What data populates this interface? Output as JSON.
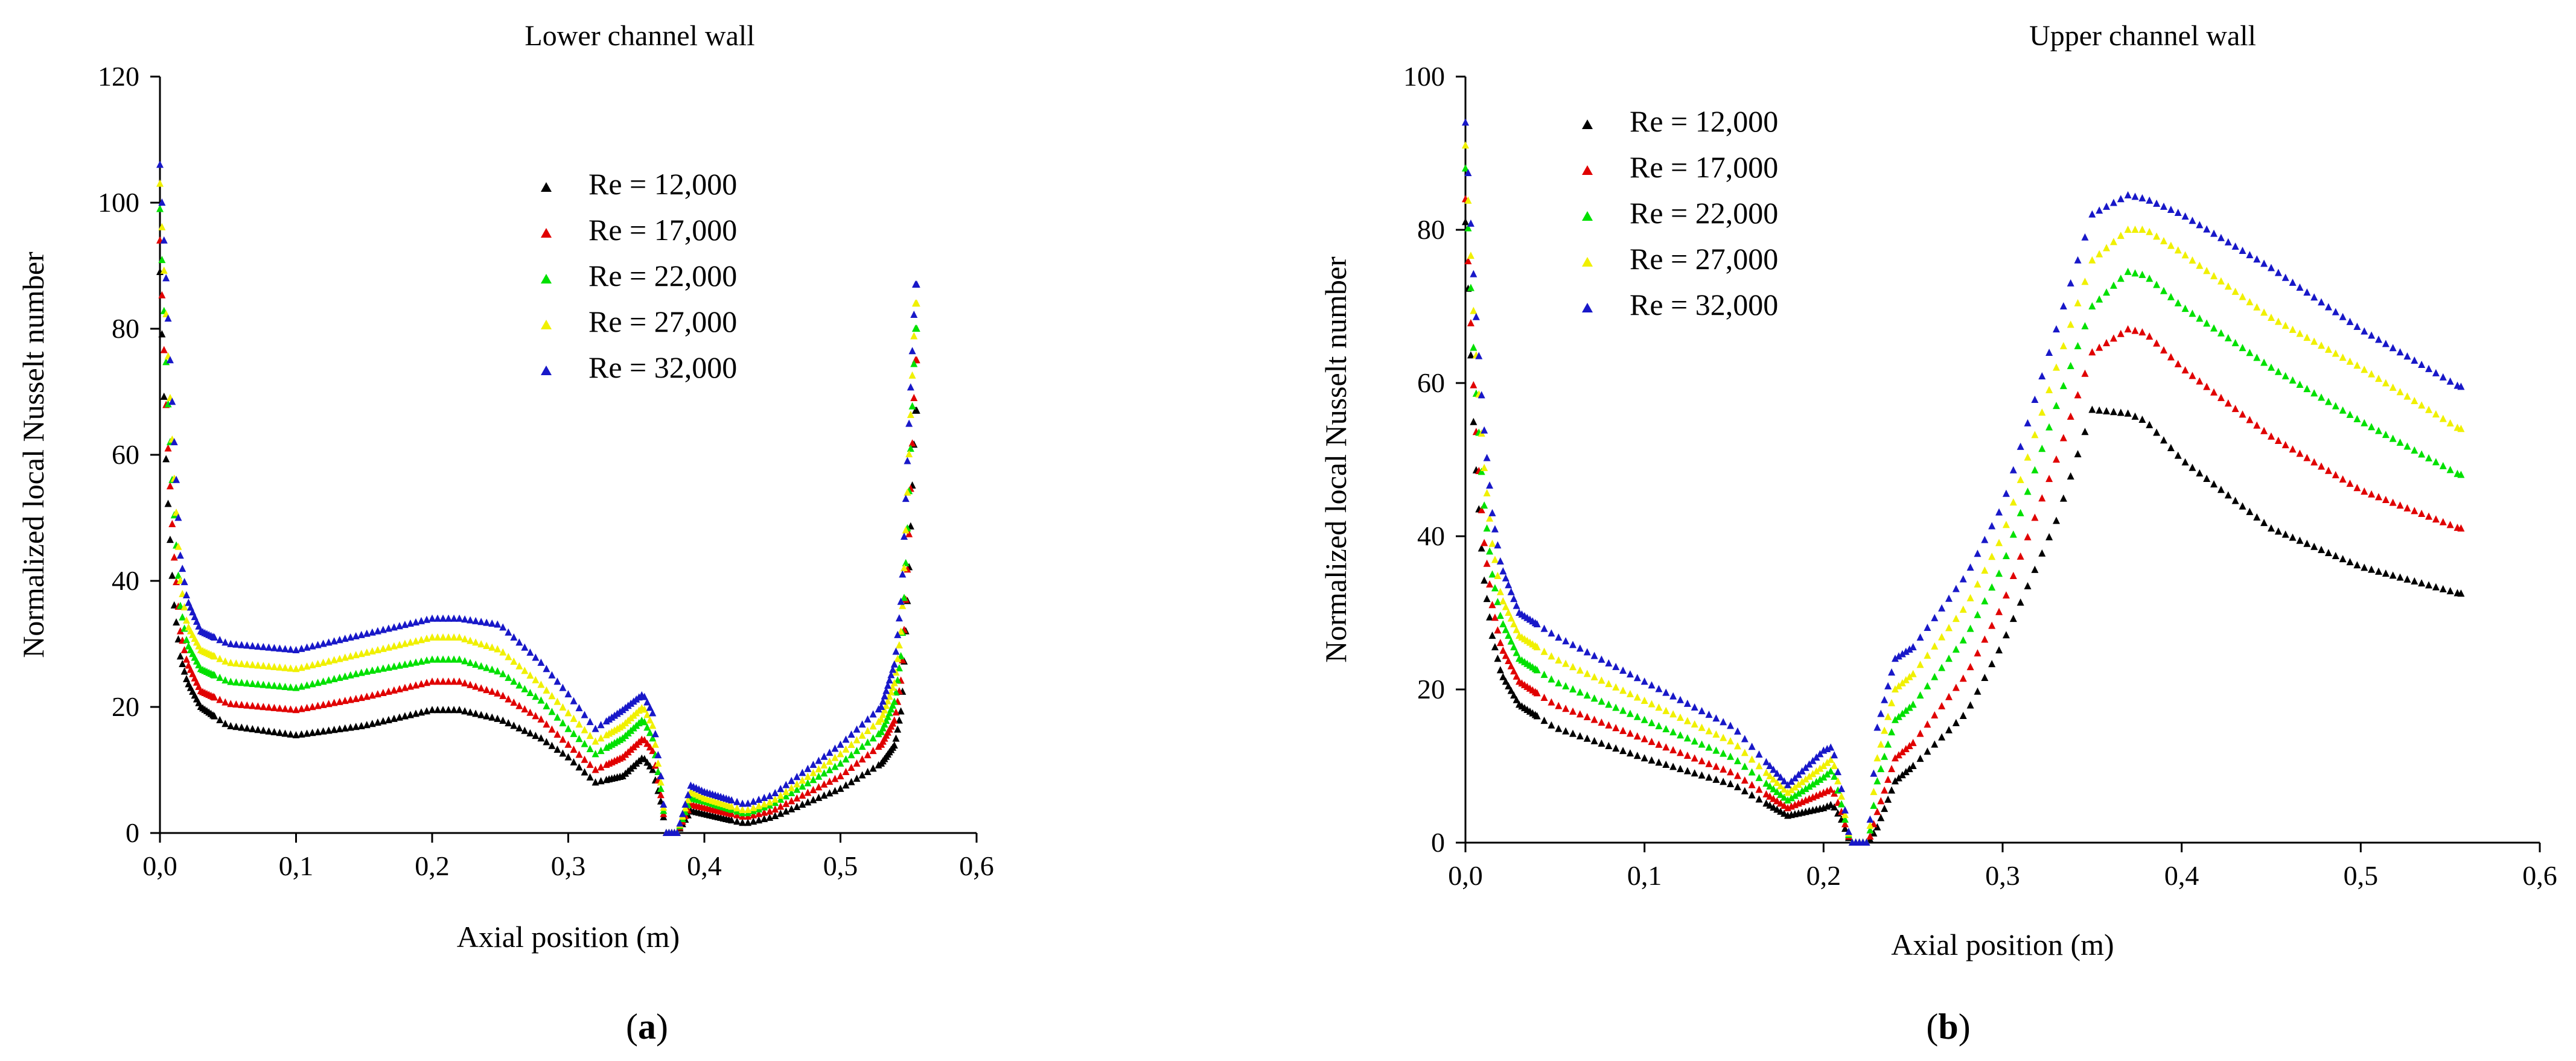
{
  "figure": {
    "panels": [
      {
        "label_open": "(",
        "label_letter": "a",
        "label_close": ")"
      },
      {
        "label_open": "(",
        "label_letter": "b",
        "label_close": ")"
      }
    ]
  },
  "colors": {
    "Re12000": "#000000",
    "Re17000": "#e00000",
    "Re22000": "#00e000",
    "Re27000": "#f0f000",
    "Re32000": "#1818c8"
  },
  "chart_data": [
    {
      "type": "scatter",
      "marker": "triangle",
      "title": "Lower channel wall",
      "xlabel": "Axial position (m)",
      "ylabel": "Normalized local Nusselt number",
      "xlim": [
        0,
        0.6
      ],
      "ylim": [
        0,
        120
      ],
      "xticks": [
        "0,0",
        "0,1",
        "0,2",
        "0,3",
        "0,4",
        "0,5",
        "0,6"
      ],
      "yticks": [
        "0",
        "20",
        "40",
        "60",
        "80",
        "100",
        "120"
      ],
      "legend_position": "top-center",
      "grid": false,
      "x": [
        0.0,
        0.005,
        0.01,
        0.015,
        0.02,
        0.03,
        0.05,
        0.1,
        0.15,
        0.2,
        0.22,
        0.25,
        0.28,
        0.3,
        0.32,
        0.34,
        0.355,
        0.362,
        0.368,
        0.372,
        0.38,
        0.39,
        0.4,
        0.43,
        0.45,
        0.5,
        0.53,
        0.54,
        0.545,
        0.55,
        0.555
      ],
      "series": [
        {
          "name": "Re = 12,000",
          "color_key": "Re12000",
          "values": [
            89,
            56,
            37,
            28,
            24,
            20,
            17,
            15.5,
            17,
            19.5,
            19.5,
            18,
            15,
            12,
            8,
            9,
            12,
            10,
            5,
            0,
            0,
            3.5,
            3,
            1.5,
            2.5,
            7,
            11,
            14,
            20,
            40,
            67
          ]
        },
        {
          "name": "Re = 17,000",
          "color_key": "Re17000",
          "values": [
            94,
            65,
            45,
            32,
            27,
            22.5,
            20.5,
            19.5,
            21.5,
            24,
            24,
            22,
            18,
            14,
            10,
            12,
            15,
            13,
            6,
            0,
            0,
            4.5,
            4,
            2.5,
            3.5,
            9,
            14,
            18,
            25,
            45,
            75
          ]
        },
        {
          "name": "Re = 22,000",
          "color_key": "Re22000",
          "values": [
            99,
            72,
            52,
            36,
            30,
            26,
            24,
            23,
            25.5,
            27.5,
            27.5,
            25.5,
            21,
            16.5,
            12.5,
            15,
            18,
            15,
            7,
            0,
            0,
            5.5,
            5,
            3,
            4.5,
            11,
            16,
            21,
            29,
            52,
            80
          ]
        },
        {
          "name": "Re = 27,000",
          "color_key": "Re27000",
          "values": [
            103,
            80,
            58,
            40,
            33,
            29,
            27,
            26,
            28.5,
            31,
            31,
            29,
            23.5,
            19,
            14.5,
            17,
            20,
            17,
            8,
            0,
            0,
            6.5,
            5.5,
            3.5,
            5,
            12.5,
            18,
            24,
            33,
            58,
            84
          ]
        },
        {
          "name": "Re = 32,000",
          "color_key": "Re32000",
          "values": [
            106,
            86,
            64,
            44,
            37,
            32,
            30,
            29,
            31.5,
            34,
            34,
            33,
            27,
            22,
            16.5,
            19.5,
            22,
            19,
            9,
            0,
            0,
            7.5,
            6.5,
            4.5,
            6,
            14,
            20,
            27,
            38,
            63,
            87
          ]
        }
      ]
    },
    {
      "type": "scatter",
      "marker": "triangle",
      "title": "Upper channel wall",
      "xlabel": "Axial position (m)",
      "ylabel": "Normalized local Nusselt number",
      "xlim": [
        0,
        0.6
      ],
      "ylim": [
        0,
        100
      ],
      "xticks": [
        "0,0",
        "0,1",
        "0,2",
        "0,3",
        "0,4",
        "0,5",
        "0,6"
      ],
      "yticks": [
        "0",
        "20",
        "40",
        "60",
        "80",
        "100"
      ],
      "legend_position": "top-left",
      "grid": false,
      "x": [
        0.0,
        0.005,
        0.01,
        0.015,
        0.02,
        0.03,
        0.05,
        0.1,
        0.15,
        0.18,
        0.2,
        0.205,
        0.21,
        0.215,
        0.22,
        0.225,
        0.23,
        0.24,
        0.25,
        0.28,
        0.3,
        0.33,
        0.35,
        0.37,
        0.38,
        0.4,
        0.45,
        0.5,
        0.555
      ],
      "series": [
        {
          "name": "Re = 12,000",
          "color_key": "Re12000",
          "values": [
            81,
            52,
            35,
            27,
            22,
            18,
            15,
            11,
            7.5,
            3.5,
            4.5,
            5,
            3,
            0,
            0,
            0,
            2,
            8,
            10,
            17,
            26,
            42,
            56.5,
            56,
            55,
            50,
            41,
            36,
            32.5
          ]
        },
        {
          "name": "Re = 17,000",
          "color_key": "Re17000",
          "values": [
            84,
            57,
            40,
            31,
            25.5,
            21,
            18,
            13.5,
            9,
            4.5,
            6.5,
            7,
            4,
            0,
            0,
            0,
            4,
            11,
            13,
            22,
            31,
            50,
            64,
            67,
            66.5,
            62,
            53,
            46,
            41
          ]
        },
        {
          "name": "Re = 22,000",
          "color_key": "Re22000",
          "values": [
            88,
            62,
            45,
            35,
            29,
            24,
            21,
            16,
            11,
            5.5,
            8.5,
            9.5,
            5,
            0,
            0,
            0,
            8,
            16,
            18,
            27,
            36,
            57,
            70,
            74.5,
            74,
            70,
            62,
            55,
            48
          ]
        },
        {
          "name": "Re = 27,000",
          "color_key": "Re27000",
          "values": [
            91,
            67,
            50,
            39,
            32,
            27,
            24,
            18.5,
            13,
            6.5,
            10,
            11,
            6,
            0,
            0,
            0,
            11,
            20,
            22,
            31,
            40,
            62,
            76,
            80,
            80,
            77,
            68.5,
            62,
            54
          ]
        },
        {
          "name": "Re = 32,000",
          "color_key": "Re32000",
          "values": [
            94,
            72,
            55,
            43,
            36,
            30,
            27,
            21,
            15,
            7.5,
            12,
            12.5,
            7,
            0,
            0,
            0,
            15,
            24,
            25.5,
            35,
            44,
            67,
            82,
            84.5,
            84,
            82,
            75,
            67,
            59.5
          ]
        }
      ]
    }
  ]
}
